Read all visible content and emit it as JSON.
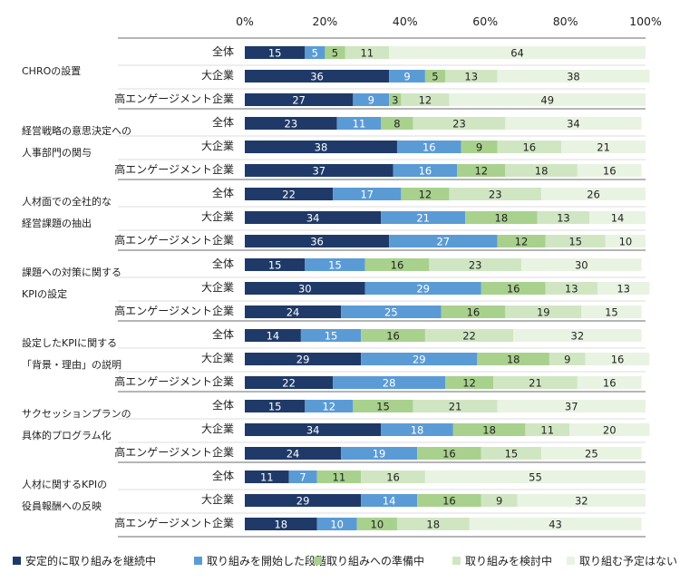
{
  "chart_data": {
    "type": "bar",
    "orientation": "horizontal",
    "stacked": true,
    "xlim": [
      0,
      100
    ],
    "ticks": [
      "0%",
      "20%",
      "40%",
      "60%",
      "80%",
      "100%"
    ],
    "tick_values": [
      0,
      20,
      40,
      60,
      80,
      100
    ],
    "legend_position": "bottom",
    "series": [
      {
        "name": "安定的に取り組みを継続中",
        "color": "#1f3a68"
      },
      {
        "name": "取り組みを開始した段階",
        "color": "#5b9bd5"
      },
      {
        "name": "取り組みへの準備中",
        "color": "#a9d18e"
      },
      {
        "name": "取り組みを検討中",
        "color": "#d0e6c3"
      },
      {
        "name": "取り組む予定はない",
        "color": "#e9f3e2"
      }
    ],
    "groups": [
      {
        "label": [
          "CHROの設置"
        ],
        "rows": [
          {
            "label": "全体",
            "values": [
              15,
              5,
              5,
              11,
              64
            ]
          },
          {
            "label": "大企業",
            "values": [
              36,
              9,
              5,
              13,
              38
            ]
          },
          {
            "label": "高エンゲージメント企業",
            "values": [
              27,
              9,
              3,
              12,
              49
            ]
          }
        ]
      },
      {
        "label": [
          "経営戦略の意思決定への",
          "人事部門の関与"
        ],
        "rows": [
          {
            "label": "全体",
            "values": [
              23,
              11,
              8,
              23,
              34
            ]
          },
          {
            "label": "大企業",
            "values": [
              38,
              16,
              9,
              16,
              21
            ]
          },
          {
            "label": "高エンゲージメント企業",
            "values": [
              37,
              16,
              12,
              18,
              16
            ]
          }
        ]
      },
      {
        "label": [
          "人材面での全社的な",
          "経営課題の抽出"
        ],
        "rows": [
          {
            "label": "全体",
            "values": [
              22,
              17,
              12,
              23,
              26
            ]
          },
          {
            "label": "大企業",
            "values": [
              34,
              21,
              18,
              13,
              14
            ]
          },
          {
            "label": "高エンゲージメント企業",
            "values": [
              36,
              27,
              12,
              15,
              10
            ]
          }
        ]
      },
      {
        "label": [
          "課題への対策に関する",
          "KPIの設定"
        ],
        "rows": [
          {
            "label": "全体",
            "values": [
              15,
              15,
              16,
              23,
              30
            ]
          },
          {
            "label": "大企業",
            "values": [
              30,
              29,
              16,
              13,
              13
            ]
          },
          {
            "label": "高エンゲージメント企業",
            "values": [
              24,
              25,
              16,
              19,
              15
            ]
          }
        ]
      },
      {
        "label": [
          "設定したKPIに関する",
          "「背景・理由」の説明"
        ],
        "rows": [
          {
            "label": "全体",
            "values": [
              14,
              15,
              16,
              22,
              32
            ]
          },
          {
            "label": "大企業",
            "values": [
              29,
              29,
              18,
              9,
              16
            ]
          },
          {
            "label": "高エンゲージメント企業",
            "values": [
              22,
              28,
              12,
              21,
              16
            ]
          }
        ]
      },
      {
        "label": [
          "サクセッションプランの",
          "具体的プログラム化"
        ],
        "rows": [
          {
            "label": "全体",
            "values": [
              15,
              12,
              15,
              21,
              37
            ]
          },
          {
            "label": "大企業",
            "values": [
              34,
              18,
              18,
              11,
              20
            ]
          },
          {
            "label": "高エンゲージメント企業",
            "values": [
              24,
              19,
              16,
              15,
              25
            ]
          }
        ]
      },
      {
        "label": [
          "人材に関するKPIの",
          "役員報酬への反映"
        ],
        "rows": [
          {
            "label": "全体",
            "values": [
              11,
              7,
              11,
              16,
              55
            ]
          },
          {
            "label": "大企業",
            "values": [
              29,
              14,
              16,
              9,
              32
            ]
          },
          {
            "label": "高エンゲージメント企業",
            "values": [
              18,
              10,
              10,
              18,
              43
            ]
          }
        ]
      }
    ]
  },
  "colors": {
    "value_text_light": "#ffffff",
    "value_text_dark": "#222222",
    "separator": "#6b6b6b",
    "row_separator": "#bdbdbd",
    "text": "#222222"
  }
}
